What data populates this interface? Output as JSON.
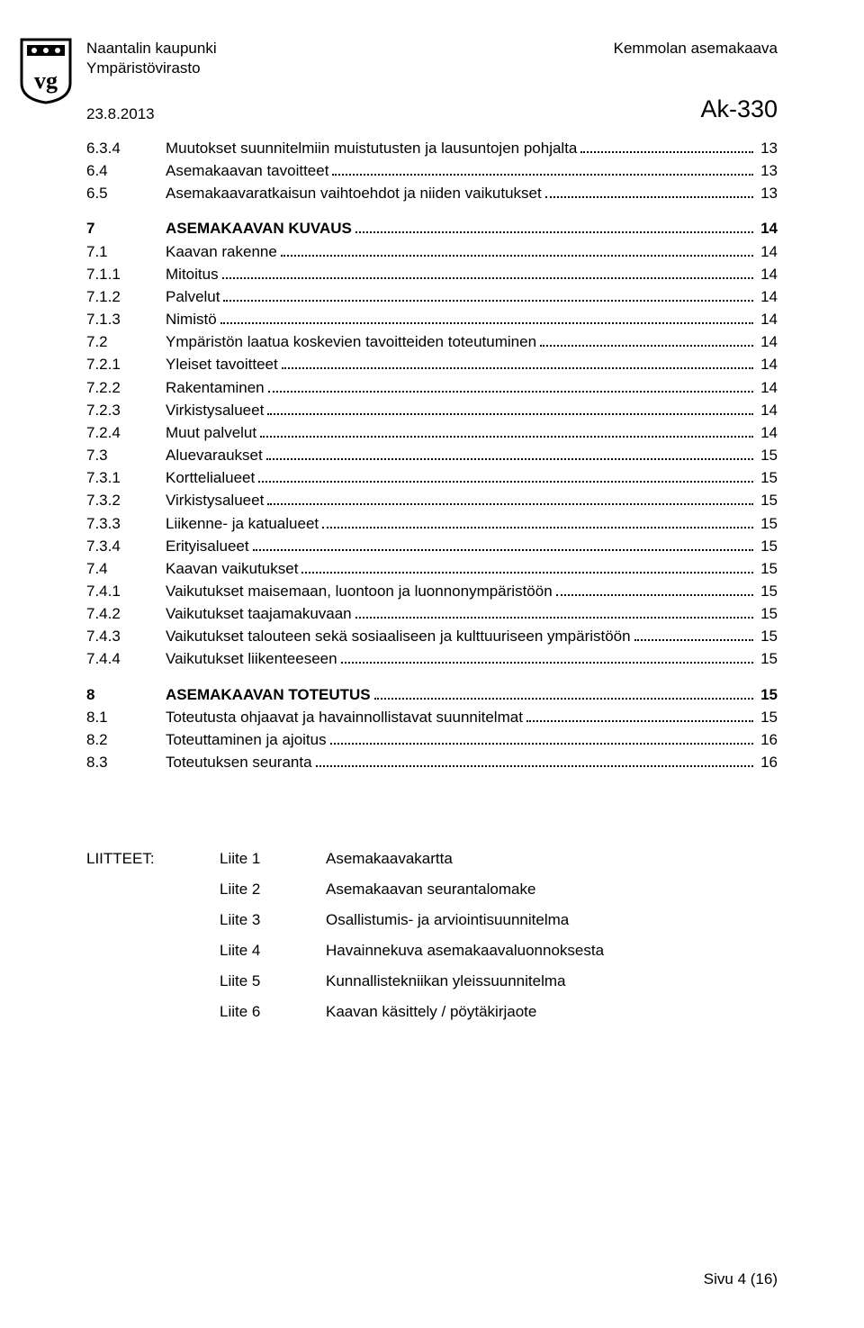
{
  "header": {
    "org": "Naantalin kaupunki",
    "dept": "Ympäristövirasto",
    "plan": "Kemmolan asemakaava",
    "date": "23.8.2013",
    "ak": "Ak-330"
  },
  "toc": [
    {
      "num": "6.3.4",
      "label": "Muutokset suunnitelmiin muistutusten ja lausuntojen pohjalta",
      "page": "13",
      "bold": false
    },
    {
      "num": "6.4",
      "label": "Asemakaavan tavoitteet",
      "page": "13",
      "bold": false
    },
    {
      "num": "6.5",
      "label": "Asemakaavaratkaisun vaihtoehdot ja niiden vaikutukset",
      "page": "13",
      "bold": false
    },
    {
      "gap": true
    },
    {
      "num": "7",
      "label": "ASEMAKAAVAN KUVAUS",
      "page": "14",
      "bold": true
    },
    {
      "num": "7.1",
      "label": "Kaavan rakenne",
      "page": "14",
      "bold": false
    },
    {
      "num": "7.1.1",
      "label": "Mitoitus",
      "page": "14",
      "bold": false
    },
    {
      "num": "7.1.2",
      "label": "Palvelut",
      "page": "14",
      "bold": false
    },
    {
      "num": "7.1.3",
      "label": "Nimistö",
      "page": "14",
      "bold": false
    },
    {
      "num": "7.2",
      "label": "Ympäristön laatua koskevien tavoitteiden toteutuminen",
      "page": "14",
      "bold": false
    },
    {
      "num": "7.2.1",
      "label": "Yleiset tavoitteet",
      "page": "14",
      "bold": false
    },
    {
      "num": "7.2.2",
      "label": "Rakentaminen",
      "page": "14",
      "bold": false
    },
    {
      "num": "7.2.3",
      "label": "Virkistysalueet",
      "page": "14",
      "bold": false
    },
    {
      "num": "7.2.4",
      "label": "Muut palvelut",
      "page": "14",
      "bold": false
    },
    {
      "num": "7.3",
      "label": "Aluevaraukset",
      "page": "15",
      "bold": false
    },
    {
      "num": "7.3.1",
      "label": "Korttelialueet",
      "page": "15",
      "bold": false
    },
    {
      "num": "7.3.2",
      "label": "Virkistysalueet",
      "page": "15",
      "bold": false
    },
    {
      "num": "7.3.3",
      "label": "Liikenne- ja katualueet",
      "page": "15",
      "bold": false
    },
    {
      "num": "7.3.4",
      "label": "Erityisalueet",
      "page": "15",
      "bold": false
    },
    {
      "num": "7.4",
      "label": "Kaavan vaikutukset",
      "page": "15",
      "bold": false
    },
    {
      "num": "7.4.1",
      "label": "Vaikutukset maisemaan, luontoon ja luonnonympäristöön",
      "page": "15",
      "bold": false
    },
    {
      "num": "7.4.2",
      "label": "Vaikutukset taajamakuvaan",
      "page": "15",
      "bold": false
    },
    {
      "num": "7.4.3",
      "label": "Vaikutukset talouteen sekä sosiaaliseen ja kulttuuriseen ympäristöön",
      "page": "15",
      "bold": false
    },
    {
      "num": "7.4.4",
      "label": "Vaikutukset liikenteeseen",
      "page": "15",
      "bold": false
    },
    {
      "gap": true
    },
    {
      "num": "8",
      "label": "ASEMAKAAVAN TOTEUTUS",
      "page": "15",
      "bold": true
    },
    {
      "num": "8.1",
      "label": "Toteutusta ohjaavat ja havainnollistavat suunnitelmat",
      "page": "15",
      "bold": false
    },
    {
      "num": "8.2",
      "label": "Toteuttaminen ja ajoitus",
      "page": "16",
      "bold": false
    },
    {
      "num": "8.3",
      "label": "Toteutuksen seuranta",
      "page": "16",
      "bold": false
    }
  ],
  "attachments": {
    "heading": "LIITTEET:",
    "items": [
      {
        "id": "Liite 1",
        "label": "Asemakaavakartta"
      },
      {
        "id": "Liite 2",
        "label": "Asemakaavan seurantalomake"
      },
      {
        "id": "Liite 3",
        "label": "Osallistumis- ja arviointisuunnitelma"
      },
      {
        "id": "Liite 4",
        "label": "Havainnekuva asemakaavaluonnoksesta"
      },
      {
        "id": "Liite 5",
        "label": "Kunnallistekniikan yleissuunnitelma"
      },
      {
        "id": "Liite 6",
        "label": "Kaavan käsittely / pöytäkirjaote"
      }
    ]
  },
  "footer": "Sivu 4 (16)"
}
